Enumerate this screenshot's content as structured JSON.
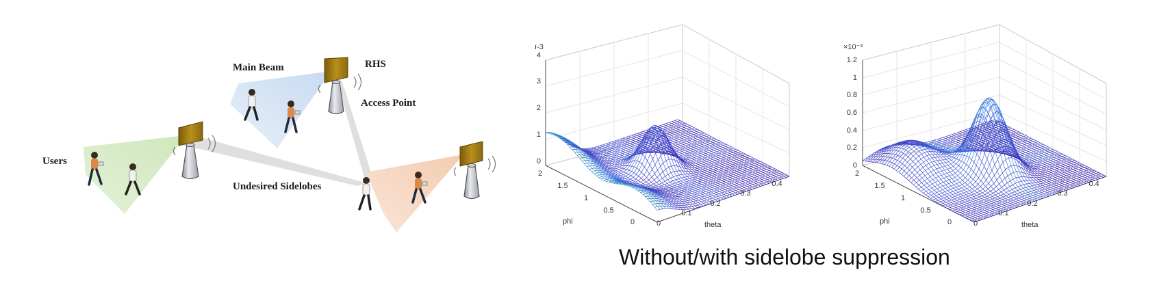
{
  "diagram": {
    "labels": {
      "main_beam": "Main Beam",
      "rhs": "RHS",
      "access_point": "Access Point",
      "users": "Users",
      "undesired_sidelobes": "Undesired Sidelobes"
    },
    "colors": {
      "beam_blue": "#cfe0f3",
      "beam_green": "#d8ecc9",
      "beam_orange": "#f6d6bf",
      "sidelobe_gray": "#d9d9d9",
      "panel_gold": "#a07a12",
      "shirt_orange": "#d9894a"
    }
  },
  "plots": {
    "left": {
      "exponent_label": "ı-3",
      "z_ticks": [
        "4",
        "3",
        "2",
        "1",
        "0"
      ],
      "phi_ticks": [
        "2",
        "1.5",
        "1",
        "0.5",
        "0"
      ],
      "theta_ticks": [
        "0",
        "0.1",
        "0.2",
        "0.3",
        "0.4"
      ],
      "xlabel": "theta",
      "ylabel": "phi"
    },
    "right": {
      "exponent_label": "×10⁻³",
      "z_ticks": [
        "1.2",
        "1",
        "0.8",
        "0.6",
        "0.4",
        "0.2",
        "0"
      ],
      "phi_ticks": [
        "2",
        "1.5",
        "1",
        "0.5",
        "0"
      ],
      "theta_ticks": [
        "0",
        "0.1",
        "0.2",
        "0.3",
        "0.4"
      ],
      "xlabel": "theta",
      "ylabel": "phi"
    },
    "colormap": [
      "#3b1fa8",
      "#3f5de0",
      "#21a6c9",
      "#3fc48a",
      "#b9d83a",
      "#f4e31c"
    ]
  },
  "caption": "Without/with sidelobe suppression"
}
